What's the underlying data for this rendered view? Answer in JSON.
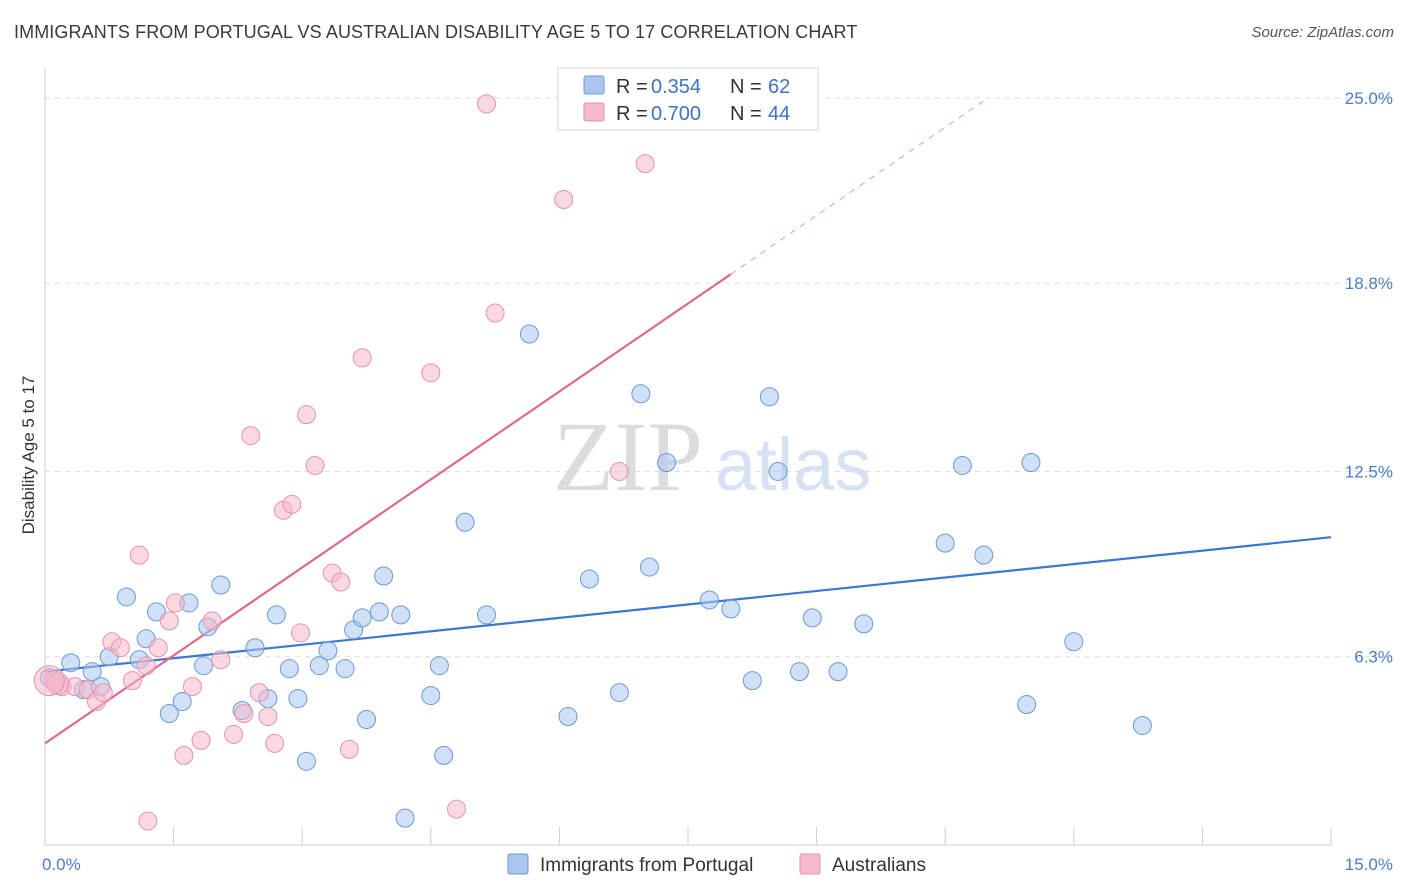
{
  "title": "IMMIGRANTS FROM PORTUGAL VS AUSTRALIAN DISABILITY AGE 5 TO 17 CORRELATION CHART",
  "source": "Source: ZipAtlas.com",
  "watermark": {
    "part1": "ZIP",
    "part2": "atlas"
  },
  "legend_top": [
    {
      "r_label": "R =",
      "r_value": "0.354",
      "n_label": "N =",
      "n_value": "62",
      "color": "#aac6ee"
    },
    {
      "r_label": "R =",
      "r_value": "0.700",
      "n_label": "N =",
      "n_value": "44",
      "color": "#f6b8cb"
    }
  ],
  "chart_data": {
    "type": "scatter",
    "title": "IMMIGRANTS FROM PORTUGAL VS AUSTRALIAN DISABILITY AGE 5 TO 17 CORRELATION CHART",
    "xlabel": "",
    "ylabel": "Disability Age 5 to 17",
    "xlim": [
      0,
      15
    ],
    "ylim": [
      0,
      26
    ],
    "x_tick_labels": [
      {
        "value": 0,
        "label": "0.0%"
      },
      {
        "value": 15,
        "label": "15.0%"
      }
    ],
    "y_tick_labels": [
      {
        "value": 6.3,
        "label": "6.3%"
      },
      {
        "value": 12.5,
        "label": "12.5%"
      },
      {
        "value": 18.8,
        "label": "18.8%"
      },
      {
        "value": 25.0,
        "label": "25.0%"
      }
    ],
    "grid": true,
    "legend_position": "bottom",
    "series": [
      {
        "name": "Immigrants from Portugal",
        "color": "#aac6ee",
        "stroke": "#6a9ad9",
        "line_color": "#3a78d2",
        "trend": {
          "x": [
            0,
            15
          ],
          "y": [
            5.8,
            10.3
          ],
          "dashed_from": null
        },
        "points": [
          [
            0.05,
            5.6
          ],
          [
            0.12,
            5.4
          ],
          [
            0.3,
            6.1
          ],
          [
            0.45,
            5.2
          ],
          [
            0.55,
            5.8
          ],
          [
            0.65,
            5.3
          ],
          [
            0.75,
            6.3
          ],
          [
            0.95,
            8.3
          ],
          [
            1.1,
            6.2
          ],
          [
            1.18,
            6.9
          ],
          [
            1.3,
            7.8
          ],
          [
            1.45,
            4.4
          ],
          [
            1.6,
            4.8
          ],
          [
            1.68,
            8.1
          ],
          [
            1.85,
            6.0
          ],
          [
            1.9,
            7.3
          ],
          [
            2.05,
            8.7
          ],
          [
            2.3,
            4.5
          ],
          [
            2.45,
            6.6
          ],
          [
            2.6,
            4.9
          ],
          [
            2.7,
            7.7
          ],
          [
            2.85,
            5.9
          ],
          [
            2.95,
            4.9
          ],
          [
            3.05,
            2.8
          ],
          [
            3.2,
            6.0
          ],
          [
            3.3,
            6.5
          ],
          [
            3.5,
            5.9
          ],
          [
            3.6,
            7.2
          ],
          [
            3.7,
            7.6
          ],
          [
            3.75,
            4.2
          ],
          [
            3.9,
            7.8
          ],
          [
            3.95,
            9.0
          ],
          [
            4.15,
            7.7
          ],
          [
            4.2,
            0.9
          ],
          [
            4.5,
            5.0
          ],
          [
            4.6,
            6.0
          ],
          [
            4.65,
            3.0
          ],
          [
            4.9,
            10.8
          ],
          [
            5.15,
            7.7
          ],
          [
            5.65,
            17.1
          ],
          [
            6.1,
            4.3
          ],
          [
            6.35,
            8.9
          ],
          [
            6.7,
            5.1
          ],
          [
            6.95,
            15.1
          ],
          [
            7.05,
            9.3
          ],
          [
            7.25,
            12.8
          ],
          [
            7.75,
            8.2
          ],
          [
            8.0,
            7.9
          ],
          [
            8.25,
            5.5
          ],
          [
            8.45,
            15.0
          ],
          [
            8.55,
            12.5
          ],
          [
            8.8,
            5.8
          ],
          [
            8.95,
            7.6
          ],
          [
            9.25,
            5.8
          ],
          [
            9.55,
            7.4
          ],
          [
            10.5,
            10.1
          ],
          [
            10.7,
            12.7
          ],
          [
            10.95,
            9.7
          ],
          [
            11.45,
            4.7
          ],
          [
            11.5,
            12.8
          ],
          [
            12.0,
            6.8
          ],
          [
            12.8,
            4.0
          ]
        ]
      },
      {
        "name": "Australians",
        "color": "#f6b8cb",
        "stroke": "#e393ad",
        "line_color": "#e0688f",
        "trend": {
          "x": [
            0,
            8.0
          ],
          "y": [
            3.4,
            19.1
          ],
          "dashed_to": {
            "x": 11.0,
            "y": 25.0
          }
        },
        "points": [
          [
            0.1,
            5.5
          ],
          [
            0.2,
            5.3
          ],
          [
            0.35,
            5.3
          ],
          [
            0.5,
            5.2
          ],
          [
            0.6,
            4.8
          ],
          [
            0.68,
            5.1
          ],
          [
            0.78,
            6.8
          ],
          [
            0.88,
            6.6
          ],
          [
            1.02,
            5.5
          ],
          [
            1.1,
            9.7
          ],
          [
            1.18,
            6.0
          ],
          [
            1.32,
            6.6
          ],
          [
            1.45,
            7.5
          ],
          [
            1.52,
            8.1
          ],
          [
            1.62,
            3.0
          ],
          [
            1.72,
            5.3
          ],
          [
            1.82,
            3.5
          ],
          [
            1.95,
            7.5
          ],
          [
            2.05,
            6.2
          ],
          [
            2.2,
            3.7
          ],
          [
            2.32,
            4.4
          ],
          [
            2.4,
            13.7
          ],
          [
            2.5,
            5.1
          ],
          [
            2.6,
            4.3
          ],
          [
            2.68,
            3.4
          ],
          [
            2.78,
            11.2
          ],
          [
            2.88,
            11.4
          ],
          [
            2.98,
            7.1
          ],
          [
            3.05,
            14.4
          ],
          [
            3.15,
            12.7
          ],
          [
            3.35,
            9.1
          ],
          [
            3.45,
            8.8
          ],
          [
            3.55,
            3.2
          ],
          [
            3.7,
            16.3
          ],
          [
            4.5,
            15.8
          ],
          [
            4.8,
            1.2
          ],
          [
            5.15,
            24.8
          ],
          [
            5.25,
            17.8
          ],
          [
            6.05,
            21.6
          ],
          [
            6.7,
            12.5
          ],
          [
            7.0,
            22.8
          ],
          [
            1.2,
            0.8
          ],
          [
            0.15,
            5.4
          ],
          [
            0.05,
            5.5
          ]
        ]
      }
    ]
  }
}
